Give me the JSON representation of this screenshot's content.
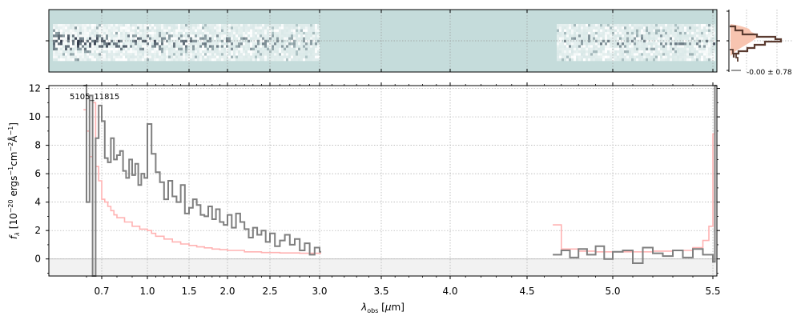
{
  "chart_data": {
    "type": "line",
    "object_label": "5105_11815",
    "xlabel": "λ_obs [μm]",
    "ylabel": "f_λ [10^-20 ergs^-1 cm^-2 Å^-1]",
    "xticks": [
      "0.7",
      "1.0",
      "1.5",
      "2.0",
      "2.5",
      "3.0",
      "3.5",
      "4.0",
      "4.5",
      "5.0",
      "5.5"
    ],
    "yticks": [
      "0",
      "2",
      "4",
      "6",
      "8",
      "10",
      "12"
    ],
    "ylim": [
      -1.2,
      12.2
    ],
    "grid": true,
    "inset_label": "-0.00 ± 0.78",
    "colors": {
      "flux": "#7f7f7f",
      "error": "#ffb3b3",
      "panel2d": "#c5dcdb",
      "inset_fill": "#f7c4b0",
      "inset_line": "#5a3b30"
    },
    "series": [
      {
        "role": "flux",
        "segments": [
          {
            "x": [
              0.58,
              0.6,
              0.62,
              0.64,
              0.66,
              0.68,
              0.7,
              0.72,
              0.74,
              0.76,
              0.78,
              0.8,
              0.82,
              0.84,
              0.86,
              0.88,
              0.9,
              0.92,
              0.94,
              0.96,
              0.98,
              1.0,
              1.05,
              1.1,
              1.15,
              1.2,
              1.25,
              1.3,
              1.35,
              1.4,
              1.45,
              1.5,
              1.55,
              1.6,
              1.65,
              1.7,
              1.75,
              1.8,
              1.85,
              1.9,
              1.95,
              2.0,
              2.05,
              2.1,
              2.15,
              2.2,
              2.25,
              2.3,
              2.35,
              2.4,
              2.45,
              2.5,
              2.55,
              2.6,
              2.65,
              2.7,
              2.75,
              2.8,
              2.85,
              2.9,
              2.95,
              3.0
            ],
            "y": [
              12.2,
              4.0,
              11.5,
              -1.2,
              8.5,
              10.8,
              9.7,
              7.1,
              6.8,
              8.5,
              7.0,
              7.3,
              7.6,
              6.2,
              5.7,
              7.0,
              5.9,
              6.7,
              5.2,
              6.0,
              5.7,
              9.5,
              7.4,
              6.1,
              5.4,
              4.2,
              5.5,
              4.4,
              4.0,
              5.2,
              3.2,
              3.6,
              4.2,
              3.8,
              3.1,
              3.0,
              3.7,
              2.8,
              3.5,
              2.6,
              2.4,
              3.1,
              2.2,
              3.2,
              2.6,
              2.1,
              1.5,
              2.2,
              1.7,
              2.0,
              1.2,
              1.8,
              0.9,
              1.3,
              1.7,
              1.0,
              1.4,
              0.6,
              1.1,
              0.3,
              0.8,
              0.5
            ]
          },
          {
            "x": [
              4.65,
              4.7,
              4.75,
              4.8,
              4.85,
              4.9,
              4.95,
              5.0,
              5.05,
              5.1,
              5.15,
              5.2,
              5.25,
              5.3,
              5.35,
              5.4,
              5.45,
              5.5,
              5.51
            ],
            "y": [
              0.3,
              0.6,
              0.1,
              0.7,
              0.3,
              0.9,
              0.0,
              0.5,
              0.6,
              -0.3,
              0.8,
              0.4,
              0.2,
              0.6,
              0.1,
              0.7,
              0.3,
              -0.2,
              12.2
            ]
          }
        ]
      },
      {
        "role": "error",
        "segments": [
          {
            "x": [
              0.58,
              0.6,
              0.62,
              0.64,
              0.66,
              0.68,
              0.7,
              0.72,
              0.74,
              0.76,
              0.78,
              0.8,
              0.85,
              0.9,
              0.95,
              1.0,
              1.05,
              1.1,
              1.2,
              1.3,
              1.4,
              1.5,
              1.6,
              1.7,
              1.8,
              1.9,
              2.0,
              2.2,
              2.4,
              2.6,
              2.8,
              3.0
            ],
            "y": [
              10.5,
              9.0,
              7.2,
              11.0,
              6.5,
              5.5,
              4.2,
              4.0,
              3.7,
              3.4,
              3.1,
              2.9,
              2.6,
              2.3,
              2.1,
              2.0,
              1.8,
              1.6,
              1.4,
              1.2,
              1.05,
              0.95,
              0.85,
              0.78,
              0.7,
              0.65,
              0.6,
              0.5,
              0.45,
              0.42,
              0.4,
              0.4
            ]
          },
          {
            "x": [
              4.65,
              4.7,
              4.8,
              4.9,
              5.0,
              5.1,
              5.2,
              5.3,
              5.4,
              5.45,
              5.48,
              5.5,
              5.51
            ],
            "y": [
              2.4,
              0.7,
              0.55,
              0.5,
              0.5,
              0.5,
              0.55,
              0.6,
              0.8,
              1.3,
              2.3,
              8.8,
              12.2
            ]
          }
        ]
      }
    ]
  }
}
